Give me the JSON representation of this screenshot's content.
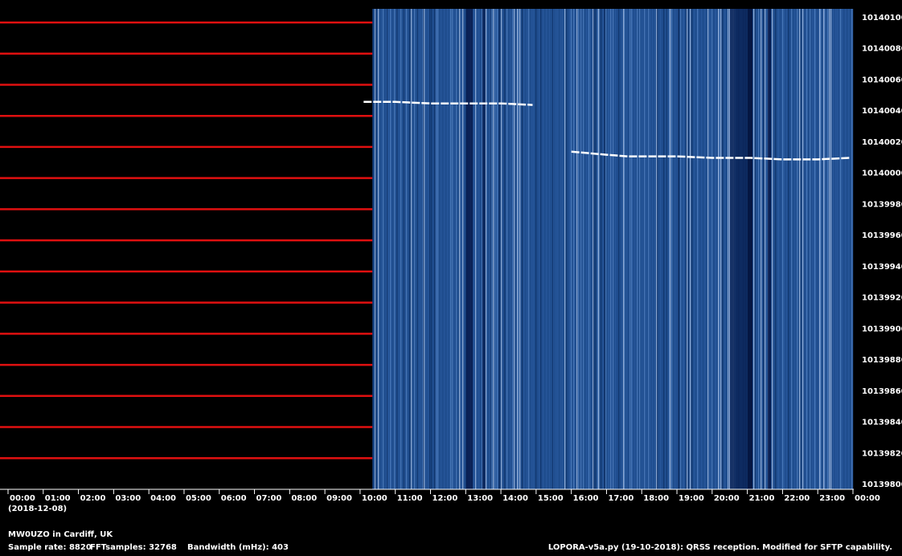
{
  "chart_data": {
    "type": "spectrogram",
    "date_label": "(2018-12-08)",
    "station": "MW0UZO in Cardiff, UK",
    "sample_rate": "Sample rate: 8820",
    "fft_samples": "FFTsamples: 32768",
    "bandwidth": "Bandwidth (mHz): 403",
    "software": "LOPORA-v5a.py (19-10-2018): QRSS reception. Modified for SFTP capability.",
    "xlim": [
      0,
      24
    ],
    "xticks": [
      {
        "value": 0,
        "label": "00:00"
      },
      {
        "value": 1,
        "label": "01:00"
      },
      {
        "value": 2,
        "label": "02:00"
      },
      {
        "value": 3,
        "label": "03:00"
      },
      {
        "value": 4,
        "label": "04:00"
      },
      {
        "value": 5,
        "label": "05:00"
      },
      {
        "value": 6,
        "label": "06:00"
      },
      {
        "value": 7,
        "label": "07:00"
      },
      {
        "value": 8,
        "label": "08:00"
      },
      {
        "value": 9,
        "label": "09:00"
      },
      {
        "value": 10,
        "label": "10:00"
      },
      {
        "value": 11,
        "label": "11:00"
      },
      {
        "value": 12,
        "label": "12:00"
      },
      {
        "value": 13,
        "label": "13:00"
      },
      {
        "value": 14,
        "label": "14:00"
      },
      {
        "value": 15,
        "label": "15:00"
      },
      {
        "value": 16,
        "label": "16:00"
      },
      {
        "value": 17,
        "label": "17:00"
      },
      {
        "value": 18,
        "label": "18:00"
      },
      {
        "value": 19,
        "label": "19:00"
      },
      {
        "value": 20,
        "label": "20:00"
      },
      {
        "value": 21,
        "label": "21:00"
      },
      {
        "value": 22,
        "label": "22:00"
      },
      {
        "value": 23,
        "label": "23:00"
      },
      {
        "value": 24,
        "label": "00:00"
      }
    ],
    "ylim": [
      10139800,
      10140100
    ],
    "yticks": [
      10139800,
      10139820,
      10139840,
      10139860,
      10139880,
      10139900,
      10139920,
      10139940,
      10139960,
      10139980,
      10140000,
      10140020,
      10140040,
      10140060,
      10140080,
      10140100
    ],
    "data_start": 10.35,
    "series": [
      {
        "name": "MW0UZO",
        "color": "#ffffff",
        "x": [
          10.1,
          11,
          12,
          13,
          14,
          14.9,
          15.05,
          16,
          17,
          17.6,
          18,
          19,
          20,
          21.1,
          22,
          23,
          23.9
        ],
        "values": [
          10140049,
          10140049,
          10140048,
          10140048,
          10140048,
          10140047,
          null,
          10140017,
          10140015,
          10140014,
          10140014,
          10140014,
          10140013,
          10140013,
          10140012,
          10140012,
          10140013
        ]
      }
    ]
  }
}
